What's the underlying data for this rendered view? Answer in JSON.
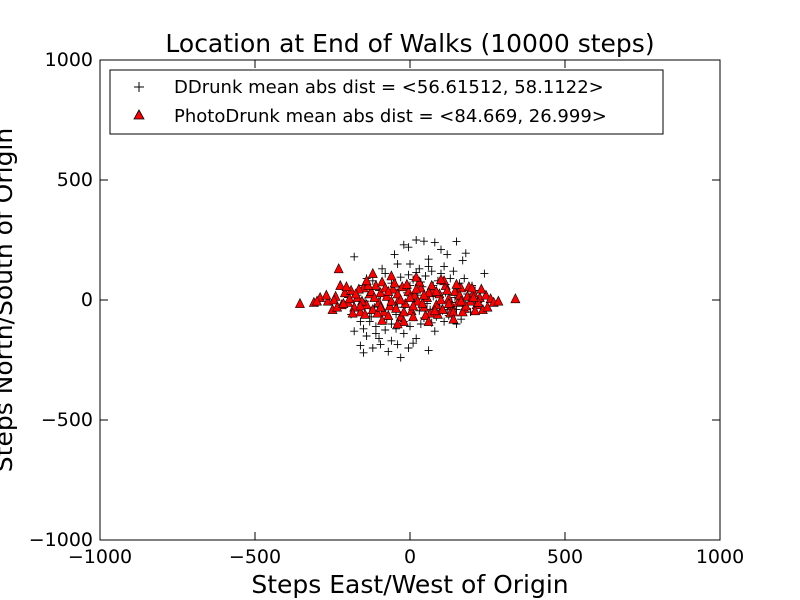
{
  "chart_data": {
    "type": "scatter",
    "title": "Location at End of Walks (10000 steps)",
    "xlabel": "Steps East/West of Origin",
    "ylabel": "Steps North/South of Origin",
    "xlim": [
      -1000,
      1000
    ],
    "ylim": [
      -1000,
      1000
    ],
    "x_ticks": [
      "−1000",
      "−500",
      "0",
      "500",
      "1000"
    ],
    "y_ticks": [
      "−1000",
      "−500",
      "0",
      "500",
      "1000"
    ],
    "grid": false,
    "legend_position": "top-left",
    "series": [
      {
        "name": "DDrunk mean abs dist = <56.61512, 58.1122>",
        "marker": "plus",
        "color": "#000000",
        "points": [
          [
            20,
            250
          ],
          [
            45,
            245
          ],
          [
            -5,
            220
          ],
          [
            -20,
            230
          ],
          [
            80,
            240
          ],
          [
            150,
            244
          ],
          [
            100,
            210
          ],
          [
            120,
            190
          ],
          [
            180,
            195
          ],
          [
            170,
            165
          ],
          [
            0,
            150
          ],
          [
            60,
            170
          ],
          [
            240,
            110
          ],
          [
            -180,
            180
          ],
          [
            -50,
            190
          ],
          [
            30,
            130
          ],
          [
            70,
            120
          ],
          [
            110,
            140
          ],
          [
            -80,
            110
          ],
          [
            -30,
            95
          ],
          [
            10,
            85
          ],
          [
            50,
            100
          ],
          [
            90,
            80
          ],
          [
            130,
            90
          ],
          [
            160,
            70
          ],
          [
            200,
            60
          ],
          [
            -120,
            80
          ],
          [
            -150,
            60
          ],
          [
            -60,
            70
          ],
          [
            0,
            60
          ],
          [
            40,
            55
          ],
          [
            -100,
            40
          ],
          [
            -10,
            30
          ],
          [
            25,
            20
          ],
          [
            75,
            15
          ],
          [
            115,
            30
          ],
          [
            145,
            10
          ],
          [
            185,
            25
          ],
          [
            -200,
            10
          ],
          [
            -70,
            0
          ],
          [
            15,
            -5
          ],
          [
            55,
            -15
          ],
          [
            95,
            -25
          ],
          [
            135,
            -10
          ],
          [
            175,
            -20
          ],
          [
            -40,
            -30
          ],
          [
            -90,
            -45
          ],
          [
            -130,
            -55
          ],
          [
            -165,
            -40
          ],
          [
            5,
            -60
          ],
          [
            45,
            -75
          ],
          [
            85,
            -70
          ],
          [
            125,
            -65
          ],
          [
            165,
            -80
          ],
          [
            -20,
            -90
          ],
          [
            -60,
            -100
          ],
          [
            -110,
            -110
          ],
          [
            -150,
            -120
          ],
          [
            -180,
            -130
          ],
          [
            -140,
            -150
          ],
          [
            -100,
            -160
          ],
          [
            -60,
            -170
          ],
          [
            -20,
            -140
          ],
          [
            10,
            -180
          ],
          [
            -5,
            -200
          ],
          [
            -30,
            -240
          ],
          [
            -70,
            -215
          ],
          [
            -150,
            -220
          ],
          [
            -120,
            -200
          ],
          [
            60,
            -210
          ],
          [
            -160,
            -190
          ],
          [
            -130,
            -90
          ],
          [
            -190,
            -60
          ],
          [
            -210,
            -20
          ],
          [
            -170,
            20
          ],
          [
            -140,
            90
          ],
          [
            -90,
            130
          ],
          [
            -40,
            150
          ],
          [
            20,
            115
          ],
          [
            60,
            140
          ],
          [
            100,
            110
          ],
          [
            140,
            120
          ],
          [
            175,
            90
          ],
          [
            210,
            40
          ],
          [
            220,
            -10
          ],
          [
            195,
            -50
          ],
          [
            150,
            -40
          ],
          [
            105,
            -45
          ],
          [
            65,
            -40
          ],
          [
            30,
            -45
          ],
          [
            -15,
            -20
          ],
          [
            -45,
            -60
          ],
          [
            -75,
            -80
          ],
          [
            -115,
            -30
          ],
          [
            -145,
            -5
          ],
          [
            -185,
            30
          ],
          [
            -160,
            -90
          ],
          [
            -110,
            -140
          ],
          [
            -80,
            -125
          ],
          [
            -45,
            -120
          ],
          [
            0,
            -110
          ],
          [
            35,
            -100
          ],
          [
            70,
            -95
          ],
          [
            110,
            -90
          ],
          [
            150,
            -100
          ],
          [
            -35,
            45
          ],
          [
            -5,
            105
          ],
          [
            35,
            75
          ],
          [
            75,
            60
          ],
          [
            115,
            65
          ],
          [
            155,
            45
          ],
          [
            190,
            5
          ],
          [
            -95,
            20
          ],
          [
            -125,
            -70
          ],
          [
            -95,
            -185
          ],
          [
            -40,
            -185
          ],
          [
            20,
            -160
          ],
          [
            80,
            -130
          ],
          [
            120,
            -40
          ],
          [
            65,
            35
          ]
        ]
      },
      {
        "name": "PhotoDrunk mean abs dist = <84.669, 26.999>",
        "marker": "triangle",
        "color": "#ff0000",
        "points": [
          [
            -355,
            -15
          ],
          [
            -310,
            -10
          ],
          [
            -290,
            10
          ],
          [
            -265,
            -5
          ],
          [
            -250,
            -40
          ],
          [
            -240,
            15
          ],
          [
            -230,
            130
          ],
          [
            -225,
            60
          ],
          [
            -210,
            30
          ],
          [
            -200,
            -10
          ],
          [
            -190,
            40
          ],
          [
            -180,
            -30
          ],
          [
            -170,
            10
          ],
          [
            -160,
            -50
          ],
          [
            -150,
            50
          ],
          [
            -140,
            -20
          ],
          [
            -130,
            25
          ],
          [
            -120,
            -40
          ],
          [
            -110,
            60
          ],
          [
            -100,
            -10
          ],
          [
            -95,
            30
          ],
          [
            -85,
            -50
          ],
          [
            -75,
            15
          ],
          [
            -65,
            -25
          ],
          [
            -55,
            45
          ],
          [
            -45,
            -35
          ],
          [
            -35,
            5
          ],
          [
            -25,
            55
          ],
          [
            -15,
            -15
          ],
          [
            -5,
            35
          ],
          [
            5,
            -45
          ],
          [
            15,
            20
          ],
          [
            25,
            -5
          ],
          [
            35,
            50
          ],
          [
            45,
            -30
          ],
          [
            55,
            10
          ],
          [
            65,
            -55
          ],
          [
            75,
            40
          ],
          [
            85,
            -20
          ],
          [
            95,
            25
          ],
          [
            105,
            -40
          ],
          [
            115,
            60
          ],
          [
            125,
            5
          ],
          [
            135,
            -25
          ],
          [
            145,
            35
          ],
          [
            155,
            -10
          ],
          [
            165,
            50
          ],
          [
            175,
            -35
          ],
          [
            185,
            15
          ],
          [
            195,
            -5
          ],
          [
            205,
            30
          ],
          [
            215,
            -20
          ],
          [
            225,
            10
          ],
          [
            235,
            -40
          ],
          [
            245,
            20
          ],
          [
            260,
            5
          ],
          [
            270,
            -10
          ],
          [
            285,
            -5
          ],
          [
            340,
            5
          ],
          [
            -300,
            -5
          ],
          [
            -270,
            20
          ],
          [
            -245,
            0
          ],
          [
            -220,
            -20
          ],
          [
            -205,
            55
          ],
          [
            -185,
            -55
          ],
          [
            -165,
            45
          ],
          [
            -145,
            -60
          ],
          [
            -125,
            35
          ],
          [
            -105,
            -55
          ],
          [
            -90,
            75
          ],
          [
            -70,
            -65
          ],
          [
            -50,
            70
          ],
          [
            -30,
            -70
          ],
          [
            -10,
            65
          ],
          [
            10,
            -70
          ],
          [
            30,
            75
          ],
          [
            50,
            -65
          ],
          [
            70,
            60
          ],
          [
            90,
            -60
          ],
          [
            110,
            80
          ],
          [
            130,
            -55
          ],
          [
            150,
            65
          ],
          [
            170,
            -50
          ],
          [
            190,
            55
          ],
          [
            210,
            -45
          ],
          [
            230,
            45
          ],
          [
            250,
            -30
          ],
          [
            -235,
            -30
          ],
          [
            -195,
            5
          ],
          [
            -175,
            25
          ],
          [
            -155,
            -5
          ],
          [
            -135,
            60
          ],
          [
            -115,
            10
          ],
          [
            -95,
            -30
          ],
          [
            -80,
            50
          ],
          [
            -60,
            -5
          ],
          [
            -40,
            25
          ],
          [
            -20,
            -50
          ],
          [
            0,
            10
          ],
          [
            20,
            45
          ],
          [
            40,
            -15
          ],
          [
            60,
            30
          ],
          [
            80,
            -45
          ],
          [
            100,
            0
          ],
          [
            120,
            40
          ],
          [
            140,
            -50
          ],
          [
            160,
            20
          ],
          [
            180,
            -25
          ],
          [
            200,
            50
          ],
          [
            220,
            -10
          ],
          [
            -120,
            110
          ],
          [
            -90,
            -85
          ],
          [
            -60,
            100
          ],
          [
            -20,
            -90
          ],
          [
            20,
            95
          ],
          [
            60,
            -90
          ],
          [
            100,
            85
          ],
          [
            140,
            -80
          ],
          [
            -140,
            80
          ],
          [
            -40,
            -100
          ],
          [
            -215,
            -15
          ],
          [
            -160,
            -25
          ],
          [
            -70,
            35
          ],
          [
            -30,
            0
          ],
          [
            10,
            -25
          ],
          [
            45,
            20
          ],
          [
            85,
            35
          ],
          [
            125,
            -15
          ],
          [
            165,
            -5
          ],
          [
            205,
            10
          ]
        ]
      }
    ]
  }
}
